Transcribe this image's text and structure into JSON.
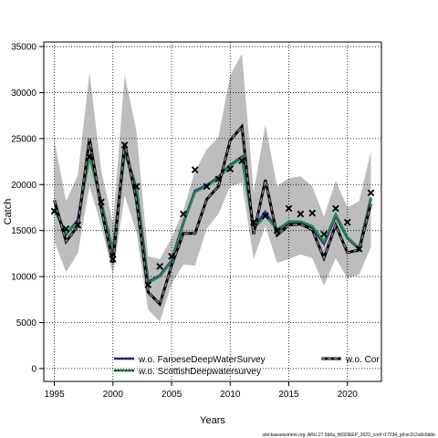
{
  "chart_data": {
    "type": "line",
    "xlabel": "Years",
    "ylabel": "Catch",
    "xlim": [
      1994.1,
      2022.9
    ],
    "ylim": [
      -1400,
      35500
    ],
    "x_ticks": [
      1995,
      2000,
      2005,
      2010,
      2015,
      2020
    ],
    "y_ticks": [
      0,
      5000,
      10000,
      15000,
      20000,
      25000,
      30000,
      35000
    ],
    "grid": true,
    "legend_position": "bottom",
    "x": [
      1995,
      1996,
      1997,
      1998,
      1999,
      2000,
      2001,
      2002,
      2003,
      2004,
      2005,
      2006,
      2007,
      2008,
      2009,
      2010,
      2011,
      2012,
      2013,
      2014,
      2015,
      2016,
      2017,
      2018,
      2019,
      2020,
      2021,
      2022
    ],
    "band": {
      "upper": [
        24800,
        18200,
        21000,
        32200,
        21500,
        15800,
        31900,
        25800,
        12200,
        11900,
        14200,
        17200,
        21500,
        23800,
        25200,
        31900,
        34200,
        19200,
        26500,
        19800,
        20700,
        20900,
        19800,
        16500,
        20400,
        17500,
        18200,
        23600
      ],
      "lower": [
        13800,
        10500,
        12500,
        19800,
        15500,
        10200,
        18800,
        14800,
        6400,
        5100,
        9200,
        11300,
        11200,
        15200,
        16800,
        19800,
        20200,
        11900,
        15500,
        11500,
        11900,
        12400,
        12000,
        9000,
        12000,
        9800,
        10200,
        13200
      ]
    },
    "series": [
      {
        "name": "w.o. FaroeseDeepWaterSurvey",
        "color": "#2b2f8f",
        "values": [
          17400,
          14600,
          16100,
          23300,
          18000,
          12700,
          23600,
          19600,
          9400,
          10100,
          11700,
          15800,
          19300,
          19900,
          20800,
          22100,
          23000,
          15300,
          17000,
          15000,
          15900,
          15800,
          15300,
          13600,
          16600,
          14200,
          13000,
          18500
        ]
      },
      {
        "name": "w.o. ScottishDeepwatersurvey",
        "color": "#1e8a4e",
        "values": [
          17200,
          14700,
          15900,
          23100,
          17900,
          12800,
          23500,
          19500,
          9300,
          10000,
          11600,
          15700,
          19200,
          19800,
          20700,
          22000,
          22900,
          15200,
          16600,
          15100,
          16000,
          16000,
          15500,
          13800,
          16800,
          14300,
          13100,
          18600
        ]
      },
      {
        "name": "w.o. Cor",
        "color": "#000000",
        "values": [
          18300,
          13800,
          15500,
          25000,
          17400,
          11500,
          24500,
          18300,
          8300,
          7000,
          11200,
          14700,
          14700,
          18400,
          19800,
          24800,
          26300,
          14600,
          20500,
          14500,
          15600,
          15700,
          15100,
          12000,
          15600,
          12600,
          12900,
          17900
        ]
      }
    ],
    "observed": {
      "x": [
        1995,
        1996,
        1997,
        1998,
        1999,
        2000,
        2001,
        2002,
        2003,
        2004,
        2005,
        2006,
        2007,
        2008,
        2009,
        2010,
        2011,
        2012,
        2013,
        2014,
        2015,
        2016,
        2017,
        2018,
        2019,
        2020,
        2021,
        2022
      ],
      "y": [
        17100,
        15200,
        15600,
        23000,
        18100,
        11900,
        24300,
        19800,
        9100,
        11100,
        12200,
        16800,
        21600,
        19800,
        20600,
        21700,
        22600,
        15900,
        16600,
        15000,
        17400,
        16800,
        16900,
        14600,
        17400,
        15900,
        13000,
        19100
      ]
    }
  },
  "footer": "stockassessment.org, ARU.27.5b6a_WGDEEP_2023_conf r17234_git:ec2c2a0c6dde"
}
